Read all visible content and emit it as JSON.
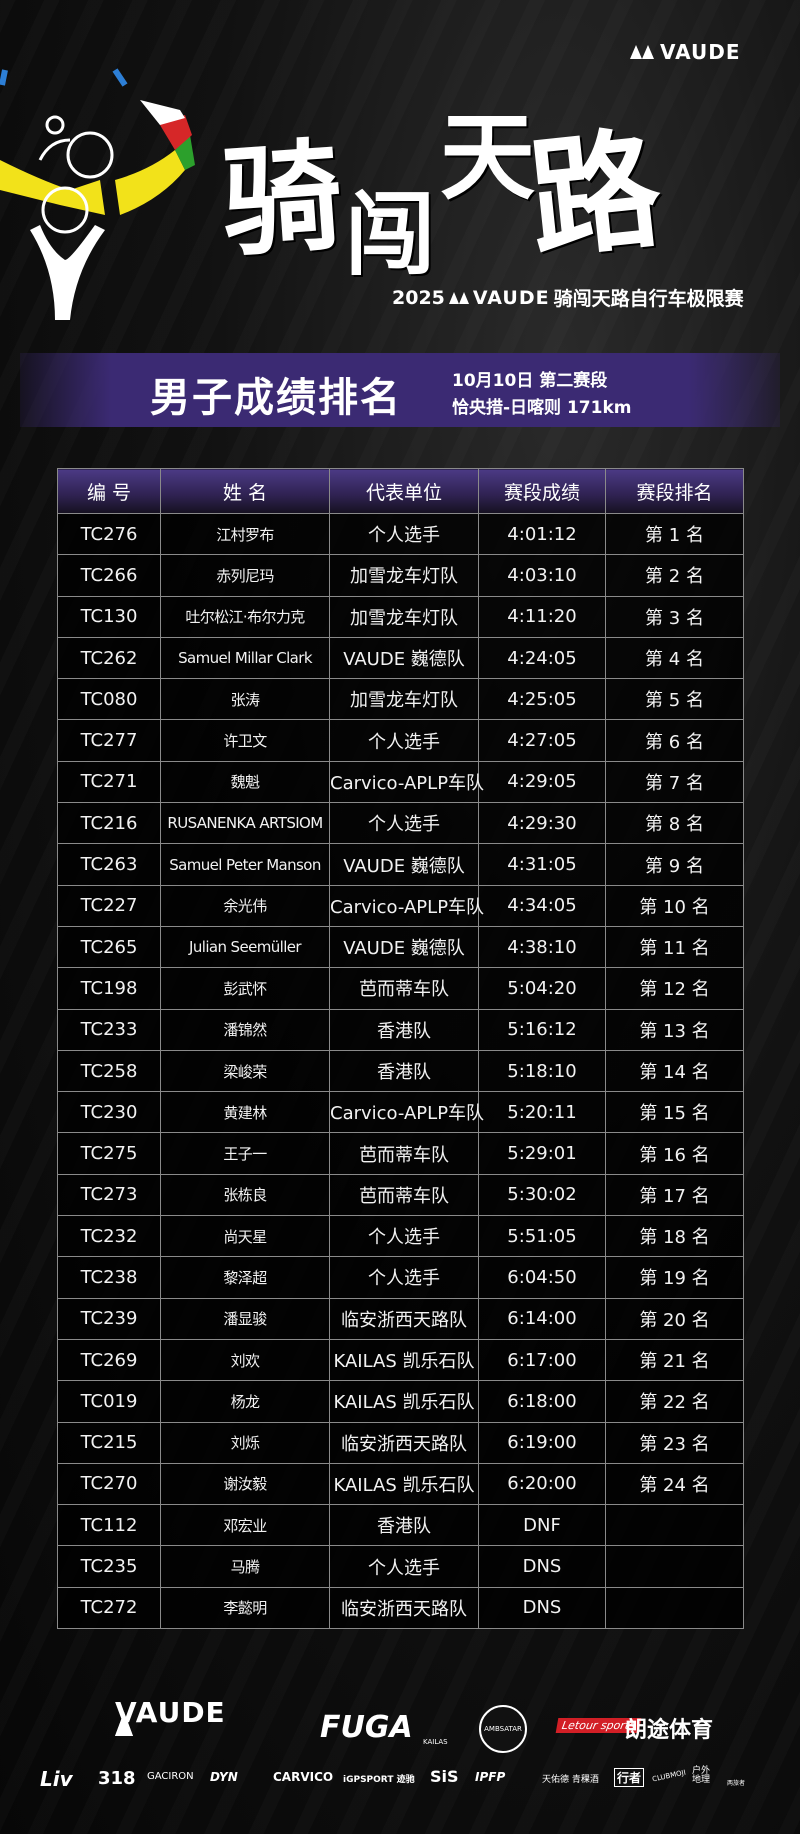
{
  "header": {
    "brand": "VAUDE",
    "title_chars": [
      "骑",
      "闯",
      "天",
      "路"
    ],
    "subtitle_year": "2025",
    "subtitle_brand": "VAUDE",
    "subtitle_event": "骑闯天路自行车极限赛"
  },
  "banner": {
    "title": "男子成绩排名",
    "date_stage": "10月10日  第二赛段",
    "route": "恰央措-日喀则 171km",
    "color": "#3b2a73"
  },
  "table": {
    "headers": [
      "编 号",
      "姓 名",
      "代表单位",
      "赛段成绩",
      "赛段排名"
    ],
    "rows": [
      [
        "TC276",
        "江村罗布",
        "个人选手",
        "4:01:12",
        "第 1 名"
      ],
      [
        "TC266",
        "赤列尼玛",
        "加雪龙车灯队",
        "4:03:10",
        "第 2 名"
      ],
      [
        "TC130",
        "吐尔松江·布尔力克",
        "加雪龙车灯队",
        "4:11:20",
        "第 3 名"
      ],
      [
        "TC262",
        "Samuel Millar Clark",
        "VAUDE 巍德队",
        "4:24:05",
        "第 4 名"
      ],
      [
        "TC080",
        "张涛",
        "加雪龙车灯队",
        "4:25:05",
        "第 5 名"
      ],
      [
        "TC277",
        "许卫文",
        "个人选手",
        "4:27:05",
        "第 6 名"
      ],
      [
        "TC271",
        "魏魁",
        "Carvico-APLP车队",
        "4:29:05",
        "第 7 名"
      ],
      [
        "TC216",
        "RUSANENKA ARTSIOM",
        "个人选手",
        "4:29:30",
        "第 8 名"
      ],
      [
        "TC263",
        "Samuel Peter Manson",
        "VAUDE 巍德队",
        "4:31:05",
        "第 9 名"
      ],
      [
        "TC227",
        "余光伟",
        "Carvico-APLP车队",
        "4:34:05",
        "第 10 名"
      ],
      [
        "TC265",
        "Julian Seemüller",
        "VAUDE 巍德队",
        "4:38:10",
        "第 11 名"
      ],
      [
        "TC198",
        "彭武怀",
        "芭而蒂车队",
        "5:04:20",
        "第 12 名"
      ],
      [
        "TC233",
        "潘锦然",
        "香港队",
        "5:16:12",
        "第 13 名"
      ],
      [
        "TC258",
        "梁峻荣",
        "香港队",
        "5:18:10",
        "第 14 名"
      ],
      [
        "TC230",
        "黄建林",
        "Carvico-APLP车队",
        "5:20:11",
        "第 15 名"
      ],
      [
        "TC275",
        "王子一",
        "芭而蒂车队",
        "5:29:01",
        "第 16 名"
      ],
      [
        "TC273",
        "张栋良",
        "芭而蒂车队",
        "5:30:02",
        "第 17 名"
      ],
      [
        "TC232",
        "尚天星",
        "个人选手",
        "5:51:05",
        "第 18 名"
      ],
      [
        "TC238",
        "黎泽超",
        "个人选手",
        "6:04:50",
        "第 19 名"
      ],
      [
        "TC239",
        "潘显骏",
        "临安浙西天路队",
        "6:14:00",
        "第 20 名"
      ],
      [
        "TC269",
        "刘欢",
        "KAILAS 凯乐石队",
        "6:17:00",
        "第 21 名"
      ],
      [
        "TC019",
        "杨龙",
        "KAILAS 凯乐石队",
        "6:18:00",
        "第 22 名"
      ],
      [
        "TC215",
        "刘烁",
        "临安浙西天路队",
        "6:19:00",
        "第 23 名"
      ],
      [
        "TC270",
        "谢汝毅",
        "KAILAS 凯乐石队",
        "6:20:00",
        "第 24 名"
      ],
      [
        "TC112",
        "邓宏业",
        "香港队",
        "DNF",
        ""
      ],
      [
        "TC235",
        "马腾",
        "个人选手",
        "DNS",
        ""
      ],
      [
        "TC272",
        "李懿明",
        "临安浙西天路队",
        "DNS",
        ""
      ]
    ]
  },
  "sponsors": {
    "main": [
      "VAUDE",
      "FUGA",
      "KAILAS",
      "AMBSATAR",
      "Letour sports",
      "朗途体育"
    ],
    "secondary": [
      "Liv",
      "318",
      "GACIRON",
      "DYN",
      "CARVICO",
      "iGPSPORT 迹驰",
      "SiS",
      "IPFP",
      "天佑德 青稞酒",
      "行者",
      "CLUBMOJI",
      "户外 地理",
      "两旅者"
    ],
    "letour_color": "#d21f26"
  }
}
